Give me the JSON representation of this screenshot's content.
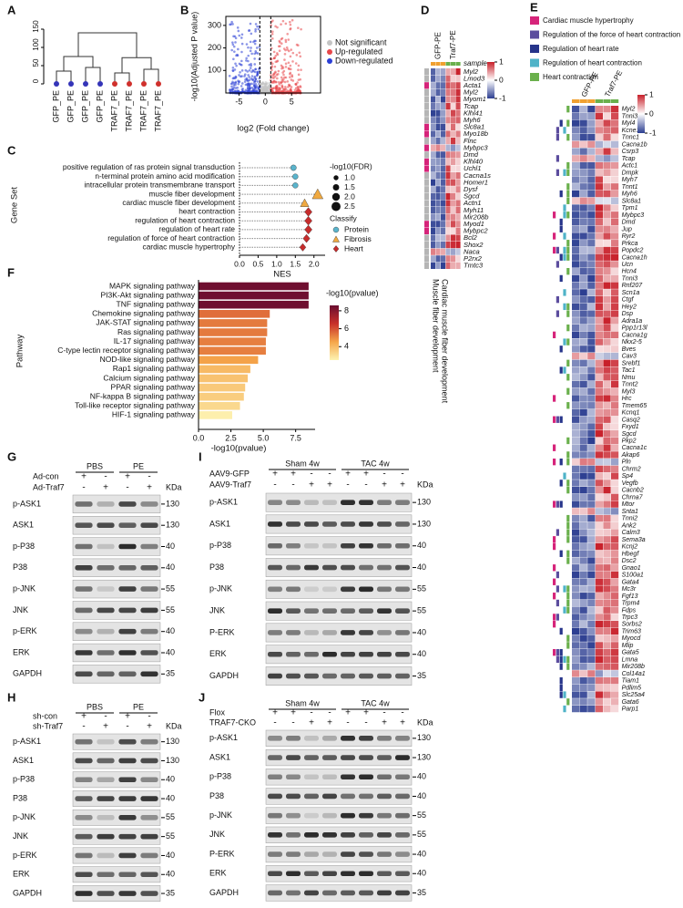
{
  "panels": [
    "A",
    "B",
    "C",
    "D",
    "E",
    "F",
    "G",
    "H",
    "I",
    "J"
  ],
  "dendrogram": {
    "ylim": [
      0,
      160
    ],
    "yticks": [
      0,
      50,
      100,
      150
    ],
    "leaves": [
      "GFP_PE",
      "GFP_PE",
      "GFP_PE",
      "GFP_PE",
      "TRAF7_PE",
      "TRAF7_PE",
      "TRAF7_PE",
      "TRAF7_PE"
    ],
    "leaf_colors": [
      "#3434b8",
      "#3434b8",
      "#3434b8",
      "#3434b8",
      "#d0302c",
      "#d0302c",
      "#d0302c",
      "#d0302c"
    ],
    "merge_heights": [
      35,
      45,
      75,
      30,
      40,
      72,
      140
    ]
  },
  "volcano": {
    "ylabel": "-log10(Adjusted P value)",
    "xlabel": "log2 (Fold change)",
    "xlim": [
      -7.5,
      10.5
    ],
    "ylim": [
      0,
      340
    ],
    "xticks": [
      -5,
      0,
      5
    ],
    "yticks": [
      100,
      200,
      300
    ],
    "legend": [
      {
        "name": "Not significant",
        "color": "#c4c4c4"
      },
      {
        "name": "Up-regulated",
        "color": "#e8474a"
      },
      {
        "name": "Down-regulated",
        "color": "#2b3fd6"
      }
    ]
  },
  "chart_data": [
    {
      "type": "lollipop",
      "ylabel": "Gene Set",
      "xlabel": "NES",
      "categories": [
        "positive regulation of ras protein signal transduction",
        "n-terminal protein amino acid modification",
        "intracellular protein transmembrane transport",
        "muscle fiber development",
        "cardiac muscle fiber development",
        "heart contraction",
        "regulation of heart contraction",
        "regulation of heart rate",
        "regulation of force of heart contraction",
        "cardiac muscle hypertrophy"
      ],
      "series": [
        {
          "name": "Protein",
          "color": "#5ab4cc",
          "shape": "circle",
          "values": [
            1.45,
            1.5,
            1.5,
            null,
            null,
            null,
            null,
            null,
            null,
            null
          ],
          "sizes": [
            1.3,
            1.2,
            1.2,
            null,
            null,
            null,
            null,
            null,
            null,
            null
          ]
        },
        {
          "name": "Fibrosis",
          "color": "#f0a940",
          "shape": "triangle",
          "values": [
            null,
            null,
            null,
            2.1,
            1.75,
            null,
            null,
            null,
            null,
            null
          ],
          "sizes": [
            null,
            null,
            null,
            2.5,
            1.8,
            null,
            null,
            null,
            null,
            null
          ]
        },
        {
          "name": "Heart",
          "color": "#c62c2c",
          "shape": "diamond",
          "values": [
            null,
            null,
            null,
            null,
            null,
            1.85,
            1.85,
            1.85,
            1.8,
            1.7
          ],
          "sizes": [
            null,
            null,
            null,
            null,
            null,
            1.9,
            1.9,
            1.9,
            1.7,
            1.5
          ]
        }
      ],
      "size_title": "-log10(FDR)",
      "size_ticks": [
        {
          "value": 1,
          "label": "1.0"
        },
        {
          "value": 1.5,
          "label": "1.5"
        },
        {
          "value": 2,
          "label": "2.0"
        },
        {
          "value": 2.5,
          "label": "2.5"
        }
      ],
      "legend_title": "Classify",
      "xlim": [
        0,
        2.3
      ],
      "xticks": [
        {
          "value": 0,
          "label": "0.0"
        },
        {
          "value": 0.5,
          "label": "0.5"
        },
        {
          "value": 1,
          "label": "1.0"
        },
        {
          "value": 1.5,
          "label": "1.5"
        },
        {
          "value": 2,
          "label": "2.0"
        }
      ]
    },
    {
      "type": "bar",
      "orientation": "horizontal",
      "ylabel": "Pathway",
      "xlabel": "-log10(pvalue)",
      "categories": [
        "MAPK signaling pathway",
        "PI3K-Akt signaling pathway",
        "TNF signaling pathway",
        "Chemokine signaling pathway",
        "JAK-STAT signaling pathway",
        "Ras signaling pathway",
        "IL-17 signaling pathway",
        "C-type lectin receptor signaling pathway",
        "NOD-like signaling pathway",
        "Rap1 signaling pathway",
        "Calcium signaling pathway",
        "PPAR signaling pathway",
        "NF-kappa B signaling pathway",
        "Toll-like receptor signaling pathway",
        "HIF-1 signaling pathway"
      ],
      "values": [
        8.5,
        8.5,
        8.5,
        5.5,
        5.3,
        5.3,
        5.2,
        5.2,
        4.6,
        4.0,
        3.8,
        3.6,
        3.5,
        3.2,
        2.6
      ],
      "xlim": [
        0,
        9
      ],
      "xticks": [
        {
          "value": 0,
          "label": "0.0"
        },
        {
          "value": 2.5,
          "label": "2.5"
        },
        {
          "value": 5,
          "label": "5.0"
        },
        {
          "value": 7.5,
          "label": "7.5"
        }
      ],
      "colorbar": {
        "title": "-log10(pvalue)",
        "ticks": [
          4,
          6,
          8
        ],
        "clim": [
          2.5,
          8.6
        ],
        "colors": [
          "#fdf3b2",
          "#f5a64a",
          "#c8302a",
          "#6a0d30"
        ]
      }
    }
  ],
  "heatmap_d": {
    "columns": [
      "GFP-PE",
      "Traf7-PE"
    ],
    "sample_label": "sample",
    "sample_colors": [
      "#f0a030",
      "#6ab04c"
    ],
    "annotation_colors": [
      "#d6247a",
      "#b5b5b5"
    ],
    "genes": [
      "Myl2",
      "Lmod3",
      "Acta1",
      "Myl2",
      "Myom1",
      "Tcap",
      "Klhl41",
      "Myh6",
      "Slc8a1",
      "Myo18b",
      "Flnc",
      "Mybpc3",
      "Dmd",
      "Klhl40",
      "Uchl1",
      "Cacna1s",
      "Homer1",
      "Dysf",
      "Sgcd",
      "Actn1",
      "Myh11",
      "Mir208b",
      "Myod1",
      "Mybpc2",
      "Bcl2",
      "Shox2",
      "Naca",
      "P2rx2",
      "Tmtc3"
    ],
    "colorbar_ticks": [
      1,
      0,
      -1
    ],
    "colors": [
      "#c8202a",
      "#ffffff",
      "#2c3e91"
    ],
    "row_labels": [
      "Muscle fiber development",
      "Cardiac muscle fiber development"
    ]
  },
  "heatmap_e": {
    "legend": [
      {
        "name": "Cardiac muscle hypertrophy",
        "color": "#d6247a"
      },
      {
        "name": "Regulation of the force of heart contraction",
        "color": "#5c4d9e"
      },
      {
        "name": "Regulation of heart rate",
        "color": "#26348a"
      },
      {
        "name": "Regulation of heart contraction",
        "color": "#4fb3c8"
      },
      {
        "name": "Heart contraction",
        "color": "#6ab04c"
      }
    ],
    "columns": [
      "GFP-PE",
      "Traf7-PE"
    ],
    "sample_colors": [
      "#f0a030",
      "#6ab04c"
    ],
    "genes": [
      "Myl2",
      "Tnni3k",
      "Myl4",
      "Kcne1",
      "Tnnc1",
      "Cacna1b",
      "Csrp3",
      "Tcap",
      "Actc1",
      "Dmpk",
      "Myh7",
      "Tnnt1",
      "Myh6",
      "Slc8a1",
      "Tpm1",
      "Mybpc3",
      "Dmd",
      "Jup",
      "Ryr2",
      "Prkca",
      "Popdc2",
      "Cacna1h",
      "Ucn",
      "Hcn4",
      "Tnni3",
      "Rnf207",
      "Scn1a",
      "Ctgf",
      "Hey2",
      "Dsp",
      "Adra1a",
      "Ppp1r13l",
      "Cacna1g",
      "Nkx2-5",
      "Bves",
      "Cav3",
      "Srebf1",
      "Tac1",
      "Nmu",
      "Tnnt2",
      "Myl3",
      "Hrc",
      "Tmem65",
      "Kcnq1",
      "Casq2",
      "Fxyd1",
      "Sgcd",
      "Pkp2",
      "Cacna1c",
      "Akap6",
      "Pln",
      "Chrm2",
      "Sp4",
      "Vegfb",
      "Cacnb2",
      "Chrna7",
      "Mtor",
      "Snta1",
      "Tnni2",
      "Ank2",
      "Calm3",
      "Sema3a",
      "Kcnj2",
      "Hbegf",
      "Dsc2",
      "Gnao1",
      "S100a1",
      "Gata4",
      "Mc3r",
      "Fgf13",
      "Trpm4",
      "Fdps",
      "Trpc3",
      "Sorbs2",
      "Trim63",
      "Myocd",
      "Mlip",
      "Gata5",
      "Lmna",
      "Mir208b",
      "Col14a1",
      "Tiam1",
      "Pdlim5",
      "Slc25a4",
      "Gata6",
      "Parp1"
    ],
    "colorbar_ticks": [
      1,
      0,
      -1
    ],
    "colors": [
      "#c8202a",
      "#ffffff",
      "#2c3e91"
    ]
  },
  "blots": [
    {
      "groups": [
        "PBS",
        "PE"
      ],
      "conditions": [
        {
          "name": "Ad-con",
          "signs": [
            "+",
            "-",
            "+",
            "-"
          ]
        },
        {
          "name": "Ad-Traf7",
          "signs": [
            "-",
            "+",
            "-",
            "+"
          ]
        }
      ],
      "unit": "KDa",
      "rows": [
        {
          "name": "p-ASK1",
          "mw": 130
        },
        {
          "name": "ASK1",
          "mw": 130
        },
        {
          "name": "p-P38",
          "mw": 40
        },
        {
          "name": "P38",
          "mw": 40
        },
        {
          "name": "p-JNK",
          "mw": 55
        },
        {
          "name": "JNK",
          "mw": 55
        },
        {
          "name": "p-ERK",
          "mw": 40
        },
        {
          "name": "ERK",
          "mw": 40
        },
        {
          "name": "GAPDH",
          "mw": 35
        }
      ]
    },
    {
      "groups": [
        "PBS",
        "PE"
      ],
      "conditions": [
        {
          "name": "sh-con",
          "signs": [
            "+",
            "-",
            "+",
            "-"
          ]
        },
        {
          "name": "sh-Traf7",
          "signs": [
            "-",
            "+",
            "-",
            "+"
          ]
        }
      ],
      "unit": "KDa",
      "rows": [
        {
          "name": "p-ASK1",
          "mw": 130
        },
        {
          "name": "ASK1",
          "mw": 130
        },
        {
          "name": "p-P38",
          "mw": 40
        },
        {
          "name": "P38",
          "mw": 40
        },
        {
          "name": "p-JNK",
          "mw": 55
        },
        {
          "name": "JNK",
          "mw": 55
        },
        {
          "name": "p-ERK",
          "mw": 40
        },
        {
          "name": "ERK",
          "mw": 40
        },
        {
          "name": "GAPDH",
          "mw": 35
        }
      ]
    },
    {
      "groups": [
        "Sham 4w",
        "TAC 4w"
      ],
      "conditions": [
        {
          "name": "AAV9-GFP",
          "signs": [
            "+",
            "+",
            "-",
            "-",
            "+",
            "+",
            "-",
            "-"
          ]
        },
        {
          "name": "AAV9-Traf7",
          "signs": [
            "-",
            "-",
            "+",
            "+",
            "-",
            "-",
            "+",
            "+"
          ]
        }
      ],
      "unit": "KDa",
      "rows": [
        {
          "name": "p-ASK1",
          "mw": 130
        },
        {
          "name": "ASK1",
          "mw": 130
        },
        {
          "name": "p-P38",
          "mw": 40
        },
        {
          "name": "P38",
          "mw": 40
        },
        {
          "name": "p-JNK",
          "mw": 55
        },
        {
          "name": "JNK",
          "mw": 55
        },
        {
          "name": "P-ERK",
          "mw": 40
        },
        {
          "name": "ERK",
          "mw": 40
        },
        {
          "name": "GAPDH",
          "mw": 35
        }
      ]
    },
    {
      "groups": [
        "Sham 4w",
        "TAC 4w"
      ],
      "conditions": [
        {
          "name": "Flox",
          "signs": [
            "+",
            "+",
            "-",
            "-",
            "+",
            "+",
            "-",
            "-"
          ]
        },
        {
          "name": "TRAF7-CKO",
          "signs": [
            "-",
            "-",
            "+",
            "+",
            "-",
            "-",
            "+",
            "+"
          ]
        }
      ],
      "unit": "KDa",
      "rows": [
        {
          "name": "p-ASK1",
          "mw": 130
        },
        {
          "name": "ASK1",
          "mw": 130
        },
        {
          "name": "p-P38",
          "mw": 40
        },
        {
          "name": "P38",
          "mw": 40
        },
        {
          "name": "p-JNK",
          "mw": 55
        },
        {
          "name": "JNK",
          "mw": 55
        },
        {
          "name": "P-ERK",
          "mw": 40
        },
        {
          "name": "ERK",
          "mw": 40
        },
        {
          "name": "GAPDH",
          "mw": 35
        }
      ]
    }
  ]
}
